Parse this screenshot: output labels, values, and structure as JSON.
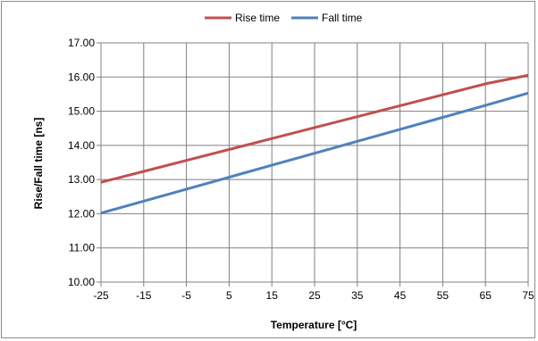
{
  "chart_data": {
    "type": "line",
    "title": "",
    "xlabel": "Temperature [°C]",
    "ylabel": "Rise/Fall time [ns]",
    "x": [
      -25,
      -15,
      -5,
      5,
      15,
      25,
      35,
      45,
      55,
      65,
      75
    ],
    "xlim": [
      -25,
      75
    ],
    "ylim": [
      10,
      17
    ],
    "ytick_values": [
      10,
      11,
      12,
      13,
      14,
      15,
      16,
      17
    ],
    "ytick_labels": [
      "10.00",
      "11.00",
      "12.00",
      "13.00",
      "14.00",
      "15.00",
      "16.00",
      "17.00"
    ],
    "xtick_labels": [
      "-25",
      "-15",
      "-5",
      "5",
      "15",
      "25",
      "35",
      "45",
      "55",
      "65",
      "75"
    ],
    "grid": true,
    "legend_position": "top",
    "series": [
      {
        "name": "Rise time",
        "color": "#c0504d",
        "values": [
          12.92,
          13.24,
          13.56,
          13.88,
          14.2,
          14.52,
          14.84,
          15.16,
          15.48,
          15.8,
          16.05
        ]
      },
      {
        "name": "Fall time",
        "color": "#4f81bd",
        "values": [
          12.02,
          12.37,
          12.72,
          13.07,
          13.42,
          13.77,
          14.12,
          14.47,
          14.82,
          15.17,
          15.53
        ]
      }
    ]
  }
}
